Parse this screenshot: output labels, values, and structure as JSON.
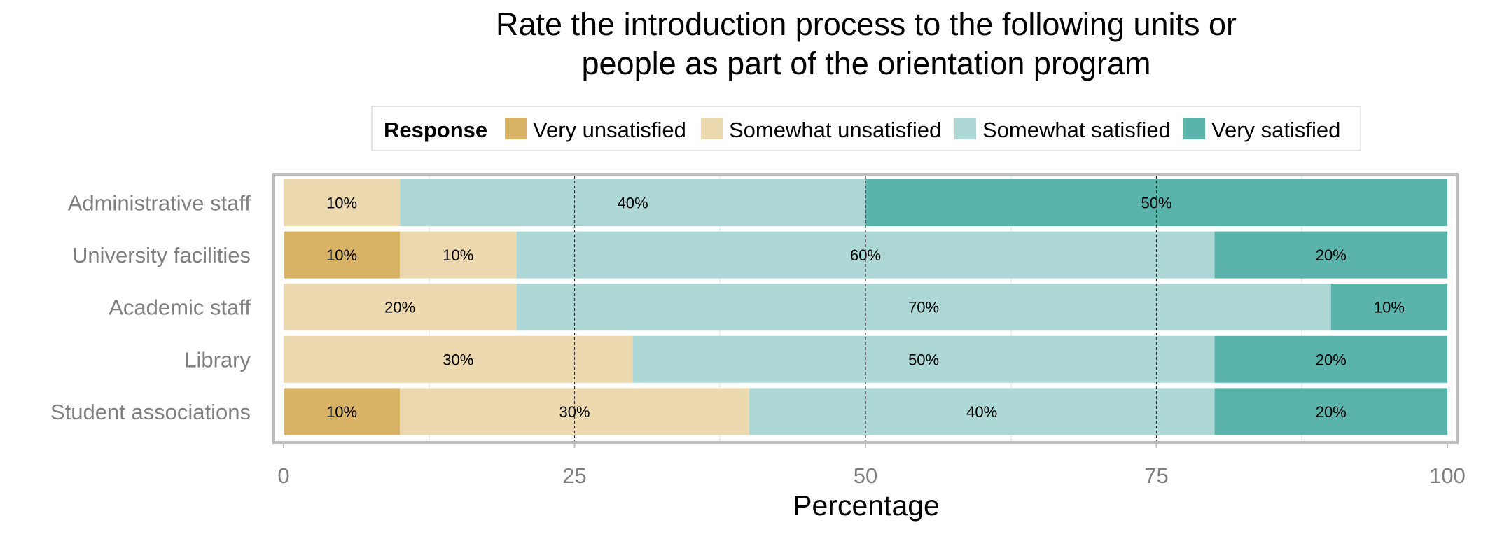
{
  "chart_data": {
    "type": "bar",
    "orientation": "horizontal",
    "stacked": true,
    "title": "Rate the introduction process to the following units or people as part of the orientation program",
    "title_lines": [
      "Rate the introduction process to the following units or",
      "people as part of the orientation program"
    ],
    "xlabel": "Percentage",
    "ylabel": "",
    "xlim": [
      0,
      100
    ],
    "x_ticks": [
      "0",
      "25",
      "50",
      "75",
      "100"
    ],
    "grid": true,
    "legend": {
      "title": "Response",
      "position": "top"
    },
    "categories": [
      "Administrative staff",
      "University facilities",
      "Academic staff",
      "Library",
      "Student associations"
    ],
    "series": [
      {
        "name": "Very unsatisfied",
        "color": "#d8b365",
        "values": [
          0,
          10,
          0,
          0,
          10
        ]
      },
      {
        "name": "Somewhat unsatisfied",
        "color": "#ecd9b0",
        "values": [
          10,
          10,
          20,
          30,
          30
        ]
      },
      {
        "name": "Somewhat satisfied",
        "color": "#add8d5",
        "values": [
          40,
          60,
          70,
          50,
          40
        ]
      },
      {
        "name": "Very satisfied",
        "color": "#5ab4ac",
        "values": [
          50,
          20,
          10,
          20,
          20
        ]
      }
    ]
  }
}
